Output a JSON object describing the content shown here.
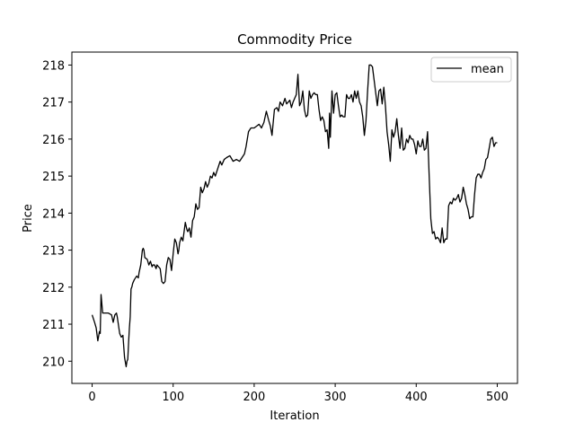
{
  "chart_data": {
    "type": "line",
    "title": "Commodity Price",
    "xlabel": "Iteration",
    "ylabel": "Price",
    "xlim": [
      -25,
      525
    ],
    "ylim": [
      209.4,
      218.35
    ],
    "xticks": [
      0,
      100,
      200,
      300,
      400,
      500
    ],
    "yticks": [
      210,
      211,
      212,
      213,
      214,
      215,
      216,
      217,
      218
    ],
    "grid": false,
    "legend": {
      "position": "top-right"
    },
    "series": [
      {
        "name": "mean",
        "color": "#000000",
        "x": [
          0,
          3,
          5,
          7,
          9,
          10,
          11,
          13,
          16,
          20,
          24,
          26,
          28,
          30,
          31,
          34,
          36,
          38,
          40,
          42,
          43,
          44,
          45,
          46,
          47,
          48,
          49,
          50,
          52,
          55,
          57,
          58,
          60,
          62,
          63,
          64,
          65,
          68,
          70,
          72,
          74,
          75,
          77,
          79,
          80,
          82,
          84,
          86,
          88,
          90,
          92,
          94,
          96,
          98,
          100,
          102,
          104,
          106,
          107,
          108,
          110,
          112,
          115,
          117,
          118,
          120,
          122,
          124,
          126,
          128,
          130,
          132,
          134,
          136,
          138,
          140,
          142,
          144,
          146,
          148,
          150,
          152,
          155,
          158,
          160,
          163,
          166,
          170,
          174,
          178,
          182,
          185,
          188,
          190,
          193,
          196,
          200,
          203,
          206,
          209,
          212,
          215,
          218,
          220,
          222,
          225,
          228,
          230,
          232,
          235,
          238,
          240,
          242,
          244,
          246,
          248,
          250,
          252,
          254,
          256,
          258,
          260,
          262,
          264,
          266,
          268,
          270,
          272,
          274,
          276,
          278,
          280,
          282,
          284,
          286,
          288,
          290,
          292,
          293,
          294,
          296,
          298,
          300,
          302,
          304,
          306,
          308,
          310,
          312,
          314,
          316,
          318,
          320,
          322,
          324,
          326,
          328,
          330,
          332,
          334,
          336,
          338,
          340,
          342,
          344,
          346,
          348,
          350,
          352,
          354,
          356,
          358,
          360,
          362,
          364,
          366,
          368,
          370,
          372,
          374,
          376,
          378,
          380,
          382,
          384,
          386,
          388,
          390,
          392,
          394,
          396,
          398,
          400,
          402,
          404,
          406,
          408,
          410,
          412,
          414,
          416,
          418,
          420,
          422,
          424,
          426,
          428,
          430,
          432,
          434,
          436,
          438,
          440,
          442,
          444,
          446,
          448,
          450,
          452,
          454,
          456,
          458,
          460,
          462,
          464,
          466,
          468,
          470,
          472,
          474,
          476,
          478,
          480,
          482,
          484,
          486,
          488,
          490,
          492,
          494,
          496,
          498,
          500
        ],
        "y": [
          211.25,
          211.05,
          210.9,
          210.55,
          210.8,
          210.75,
          211.8,
          211.3,
          211.3,
          211.3,
          211.25,
          211.05,
          211.25,
          211.3,
          211.2,
          210.75,
          210.65,
          210.7,
          210.1,
          209.85,
          210.0,
          210.05,
          210.5,
          210.9,
          211.2,
          211.95,
          212.0,
          212.1,
          212.2,
          212.3,
          212.25,
          212.4,
          212.6,
          213.0,
          213.05,
          213.0,
          212.8,
          212.75,
          212.6,
          212.7,
          212.55,
          212.6,
          212.6,
          212.5,
          212.6,
          212.55,
          212.5,
          212.15,
          212.1,
          212.15,
          212.6,
          212.8,
          212.75,
          212.45,
          212.9,
          213.3,
          213.2,
          212.9,
          213.0,
          213.2,
          213.35,
          213.25,
          213.75,
          213.55,
          213.5,
          213.6,
          213.35,
          213.8,
          213.9,
          214.25,
          214.1,
          214.15,
          214.7,
          214.55,
          214.65,
          214.85,
          214.7,
          214.8,
          215.0,
          214.95,
          215.1,
          215.0,
          215.2,
          215.4,
          215.3,
          215.45,
          215.5,
          215.55,
          215.4,
          215.45,
          215.4,
          215.5,
          215.6,
          215.8,
          216.2,
          216.3,
          216.3,
          216.35,
          216.4,
          216.3,
          216.45,
          216.75,
          216.5,
          216.35,
          216.1,
          216.8,
          216.85,
          216.75,
          217.0,
          216.9,
          217.1,
          216.95,
          217.0,
          217.05,
          216.85,
          217.0,
          217.1,
          217.2,
          217.75,
          216.9,
          217.0,
          217.3,
          216.8,
          216.6,
          216.65,
          217.3,
          217.1,
          217.2,
          217.25,
          217.2,
          217.2,
          216.8,
          216.5,
          216.6,
          216.5,
          216.2,
          216.25,
          215.75,
          216.7,
          216.05,
          217.3,
          216.7,
          217.2,
          217.25,
          216.9,
          216.6,
          216.65,
          216.6,
          216.6,
          217.2,
          217.1,
          217.1,
          217.2,
          217.0,
          217.3,
          217.1,
          217.3,
          217.0,
          216.9,
          216.6,
          216.1,
          216.5,
          217.3,
          218.0,
          218.0,
          217.95,
          217.6,
          217.25,
          216.9,
          217.3,
          217.35,
          216.95,
          217.4,
          216.9,
          216.2,
          215.85,
          215.4,
          216.25,
          216.05,
          216.2,
          216.55,
          216.1,
          215.75,
          216.3,
          215.7,
          215.75,
          216.0,
          215.9,
          216.1,
          216.0,
          216.0,
          215.85,
          215.6,
          215.95,
          215.8,
          215.8,
          216.0,
          215.7,
          215.75,
          216.2,
          215.0,
          213.85,
          213.45,
          213.5,
          213.3,
          213.35,
          213.3,
          213.2,
          213.6,
          213.2,
          213.3,
          213.3,
          214.2,
          214.3,
          214.25,
          214.4,
          214.35,
          214.4,
          214.5,
          214.3,
          214.4,
          214.7,
          214.5,
          214.25,
          214.1,
          213.85,
          213.9,
          213.9,
          214.5,
          214.95,
          215.05,
          215.05,
          214.95,
          215.1,
          215.2,
          215.45,
          215.5,
          215.75,
          216.0,
          216.05,
          215.8,
          215.9,
          215.9
        ]
      }
    ]
  }
}
